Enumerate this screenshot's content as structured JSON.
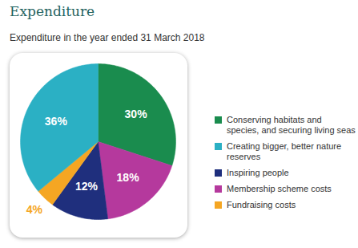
{
  "chart_data": {
    "type": "pie",
    "title": "Expenditure",
    "subtitle": "Expenditure in the year ended 31 March 2018",
    "categories": [
      "Conserving habitats and species, and securing living seas",
      "Creating bigger, better nature reserves",
      "Inspiring people",
      "Membership scheme costs",
      "Fundraising costs"
    ],
    "values": [
      30,
      36,
      12,
      18,
      4
    ],
    "value_labels": [
      "30%",
      "36%",
      "12%",
      "18%",
      "4%"
    ],
    "colors": [
      "#1a8c4e",
      "#2bb0c4",
      "#1f2f7d",
      "#b5399d",
      "#f5a623"
    ],
    "data_labels": true,
    "legend": "right"
  }
}
